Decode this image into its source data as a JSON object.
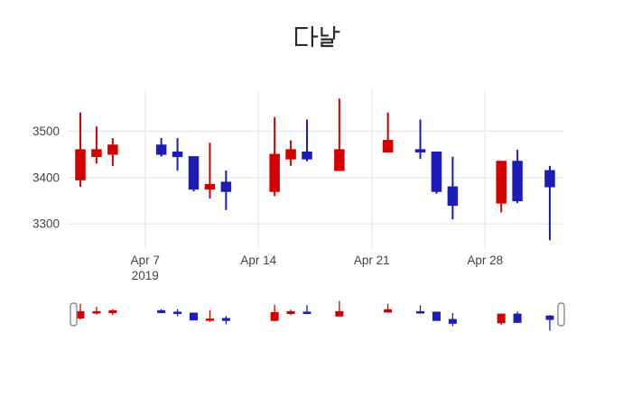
{
  "title": "다날",
  "chart_data": {
    "type": "candlestick",
    "title": "다날",
    "xlabel": "",
    "ylabel": "",
    "x_axis": {
      "tick_labels": [
        "Apr 7",
        "Apr 14",
        "Apr 21",
        "Apr 28"
      ],
      "year_label": "2019",
      "tick_day_offsets": [
        4,
        11,
        18,
        25
      ],
      "grid": true
    },
    "y_axis": {
      "tick_labels": [
        "3500",
        "3400",
        "3300"
      ],
      "tick_values": [
        3500,
        3400,
        3300
      ],
      "range": [
        3248,
        3588
      ],
      "grid": true
    },
    "legend": "none",
    "rangeslider": true,
    "increasing_color": "#d40000",
    "decreasing_color": "#1c1cb8",
    "series": [
      {
        "date": "Apr 3",
        "day_offset": 0,
        "open": 3395,
        "high": 3540,
        "low": 3380,
        "close": 3460
      },
      {
        "date": "Apr 4",
        "day_offset": 1,
        "open": 3445,
        "high": 3510,
        "low": 3430,
        "close": 3460
      },
      {
        "date": "Apr 5",
        "day_offset": 2,
        "open": 3450,
        "high": 3485,
        "low": 3425,
        "close": 3470
      },
      {
        "date": "Apr 8",
        "day_offset": 5,
        "open": 3470,
        "high": 3485,
        "low": 3445,
        "close": 3450
      },
      {
        "date": "Apr 9",
        "day_offset": 6,
        "open": 3455,
        "high": 3485,
        "low": 3415,
        "close": 3445
      },
      {
        "date": "Apr 10",
        "day_offset": 7,
        "open": 3445,
        "high": 3445,
        "low": 3370,
        "close": 3375
      },
      {
        "date": "Apr 11",
        "day_offset": 8,
        "open": 3375,
        "high": 3475,
        "low": 3355,
        "close": 3385
      },
      {
        "date": "Apr 12",
        "day_offset": 9,
        "open": 3390,
        "high": 3415,
        "low": 3330,
        "close": 3370
      },
      {
        "date": "Apr 15",
        "day_offset": 12,
        "open": 3370,
        "high": 3530,
        "low": 3360,
        "close": 3450
      },
      {
        "date": "Apr 16",
        "day_offset": 13,
        "open": 3440,
        "high": 3480,
        "low": 3425,
        "close": 3460
      },
      {
        "date": "Apr 17",
        "day_offset": 14,
        "open": 3455,
        "high": 3525,
        "low": 3435,
        "close": 3440
      },
      {
        "date": "Apr 19",
        "day_offset": 16,
        "open": 3415,
        "high": 3570,
        "low": 3415,
        "close": 3460
      },
      {
        "date": "Apr 22",
        "day_offset": 19,
        "open": 3455,
        "high": 3540,
        "low": 3455,
        "close": 3480
      },
      {
        "date": "Apr 24",
        "day_offset": 21,
        "open": 3460,
        "high": 3525,
        "low": 3440,
        "close": 3455
      },
      {
        "date": "Apr 25",
        "day_offset": 22,
        "open": 3455,
        "high": 3455,
        "low": 3365,
        "close": 3370
      },
      {
        "date": "Apr 26",
        "day_offset": 23,
        "open": 3380,
        "high": 3445,
        "low": 3310,
        "close": 3340
      },
      {
        "date": "Apr 29",
        "day_offset": 26,
        "open": 3345,
        "high": 3435,
        "low": 3325,
        "close": 3435
      },
      {
        "date": "Apr 30",
        "day_offset": 27,
        "open": 3435,
        "high": 3460,
        "low": 3345,
        "close": 3350
      },
      {
        "date": "May 2",
        "day_offset": 29,
        "open": 3415,
        "high": 3425,
        "low": 3265,
        "close": 3380
      }
    ]
  },
  "colors": {
    "background": "#ffffff",
    "grid": "#e9e9e9",
    "tick_text": "#444444",
    "title_text": "#2a2a2a",
    "handle_border": "#8a8a8a",
    "handle_fill": "#ffffff"
  }
}
